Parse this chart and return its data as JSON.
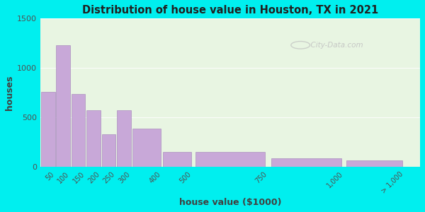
{
  "title": "Distribution of house value in Houston, TX in 2021",
  "xlabel": "house value ($1000)",
  "ylabel": "houses",
  "background_outer": "#00EFEF",
  "background_inner": "#e8f5e2",
  "bar_color": "#c8a8d8",
  "bar_edge_color": "#a080b8",
  "bin_edges": [
    0,
    50,
    100,
    150,
    200,
    250,
    300,
    400,
    500,
    750,
    1000,
    1200
  ],
  "values": [
    760,
    1230,
    740,
    575,
    330,
    570,
    390,
    155,
    155,
    90,
    70
  ],
  "tick_positions": [
    50,
    100,
    150,
    200,
    250,
    300,
    400,
    500,
    750,
    1000,
    1200
  ],
  "tick_labels": [
    "50",
    "100",
    "150",
    "200",
    "250",
    "300",
    "400",
    "500",
    "750",
    "1,000",
    "> 1,000"
  ],
  "ylim": [
    0,
    1500
  ],
  "yticks": [
    0,
    500,
    1000,
    1500
  ],
  "watermark": "City-Data.com",
  "xmin": 0,
  "xmax": 1250
}
